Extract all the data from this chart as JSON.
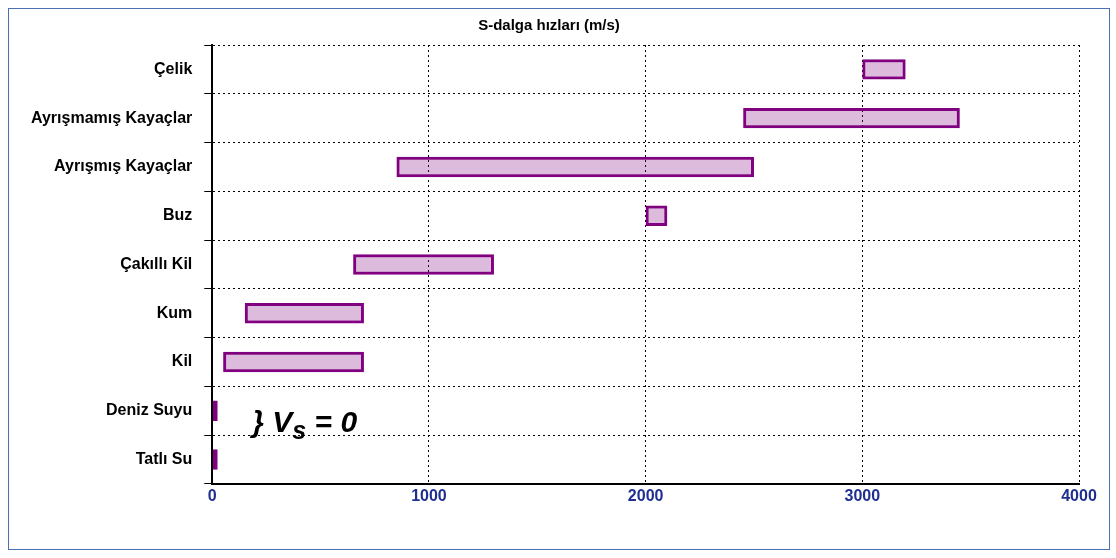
{
  "chart_data": {
    "type": "bar",
    "orientation": "horizontal",
    "title": "S-dalga hızları (m/s)",
    "categories": [
      "Çelik",
      "Ayrışmamış Kayaçlar",
      "Ayrışmış Kayaçlar",
      "Buz",
      "Çakıllı Kil",
      "Kum",
      "Kil",
      "Deniz Suyu",
      "Tatlı Su"
    ],
    "base": [
      3000,
      2450,
      850,
      2000,
      650,
      150,
      50,
      0,
      0
    ],
    "values": [
      200,
      1000,
      1650,
      100,
      650,
      550,
      650,
      25,
      25
    ],
    "color": "#800080",
    "xlim": [
      0,
      4000
    ],
    "xticks": [
      0,
      1000,
      2000,
      3000,
      4000
    ],
    "grid": true,
    "legend": false,
    "annotations": [
      "} V$_{s}$ = 0"
    ]
  }
}
